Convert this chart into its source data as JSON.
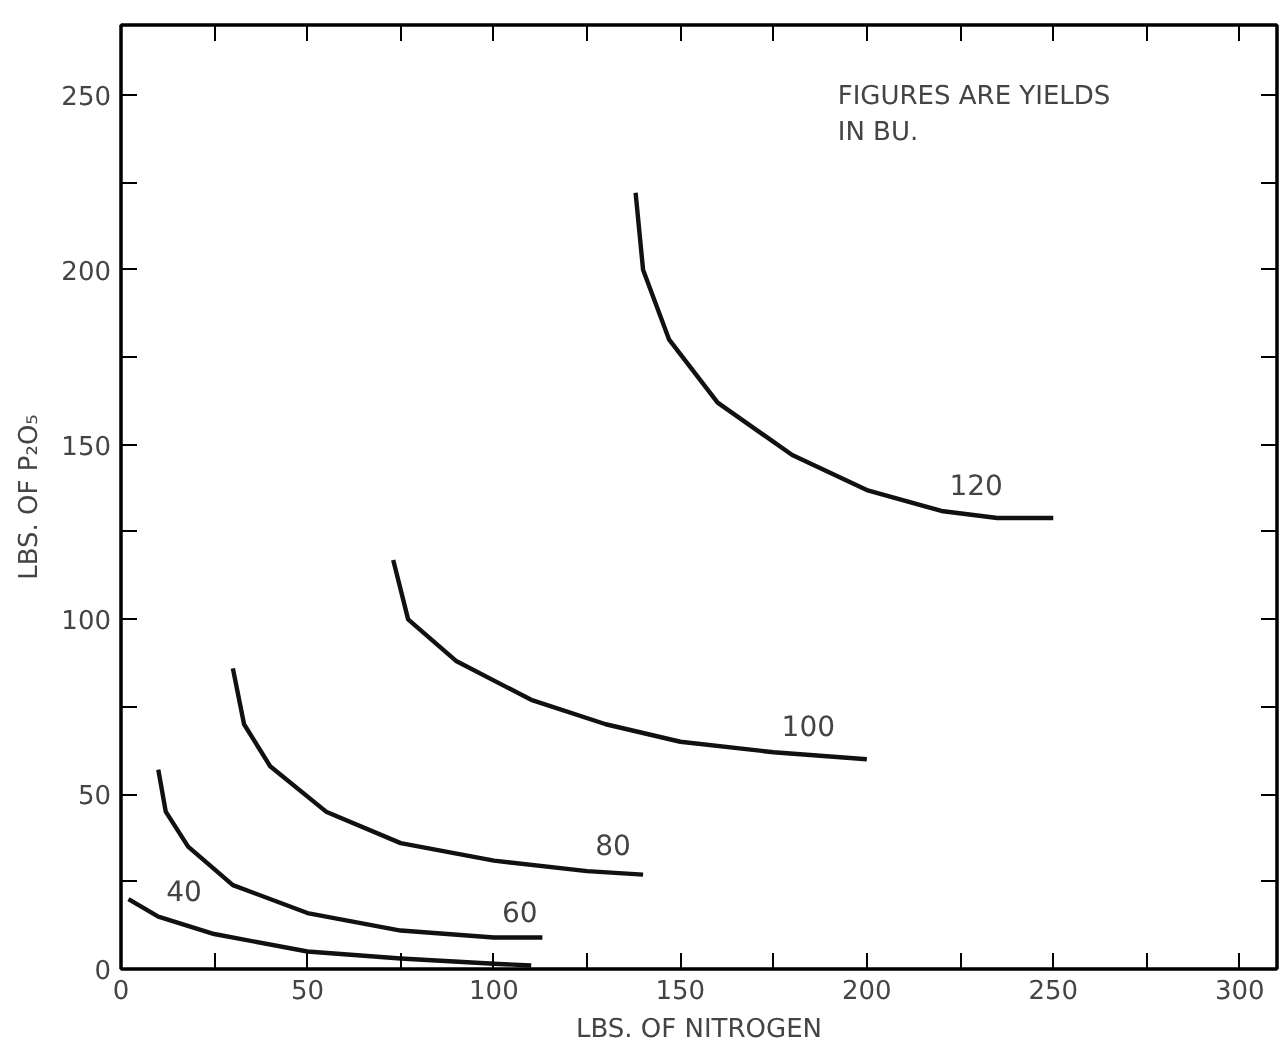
{
  "chart_data": {
    "type": "line",
    "xlabel": "LBS. OF NITROGEN",
    "ylabel": "LBS. OF P₂O₅",
    "xlim": [
      0,
      310
    ],
    "ylim": [
      0,
      270
    ],
    "xticks": [
      0,
      {
        "value": 25,
        "label": null
      },
      50,
      {
        "value": 75,
        "label": null
      },
      100,
      {
        "value": 125,
        "label": null
      },
      150,
      {
        "value": 175,
        "label": null
      },
      200,
      {
        "value": 225,
        "label": null
      },
      250,
      {
        "value": 275,
        "label": null
      },
      300
    ],
    "yticks": [
      0,
      {
        "value": 25,
        "label": null
      },
      50,
      {
        "value": 75,
        "label": null
      },
      100,
      {
        "value": 125,
        "label": null
      },
      150,
      {
        "value": 175,
        "label": null
      },
      200,
      {
        "value": 225,
        "label": null
      },
      250
    ],
    "grid": false,
    "marker": "none",
    "line_style": "solid",
    "series": [
      {
        "color": "#111111",
        "x": [
          2,
          10,
          25,
          50,
          75,
          100,
          110
        ],
        "values": [
          20,
          15,
          10,
          5,
          3,
          1.5,
          1
        ]
      },
      {
        "color": "#111111",
        "x": [
          10,
          12,
          18,
          30,
          50,
          75,
          100,
          113
        ],
        "values": [
          57,
          45,
          35,
          24,
          16,
          11,
          9,
          9
        ]
      },
      {
        "color": "#111111",
        "x": [
          30,
          33,
          40,
          55,
          75,
          100,
          125,
          140
        ],
        "values": [
          86,
          70,
          58,
          45,
          36,
          31,
          28,
          27
        ]
      },
      {
        "color": "#111111",
        "x": [
          73,
          77,
          90,
          110,
          130,
          150,
          175,
          200
        ],
        "values": [
          117,
          100,
          88,
          77,
          70,
          65,
          62,
          60
        ]
      },
      {
        "color": "#111111",
        "x": [
          138,
          140,
          147,
          160,
          180,
          200,
          220,
          235,
          250
        ],
        "values": [
          222,
          200,
          180,
          162,
          147,
          137,
          131,
          129,
          129
        ]
      }
    ],
    "annotations": [
      "FIGURES ARE YIELDS\nIN BU.",
      {
        "text": "40",
        "x": 10,
        "y": 15
      },
      {
        "text": "60",
        "x": 100,
        "y": 9
      },
      {
        "text": "80",
        "x": 125,
        "y": 28
      },
      {
        "text": "100",
        "x": 175,
        "y": 62
      },
      {
        "text": "120",
        "x": 220,
        "y": 131
      }
    ]
  }
}
